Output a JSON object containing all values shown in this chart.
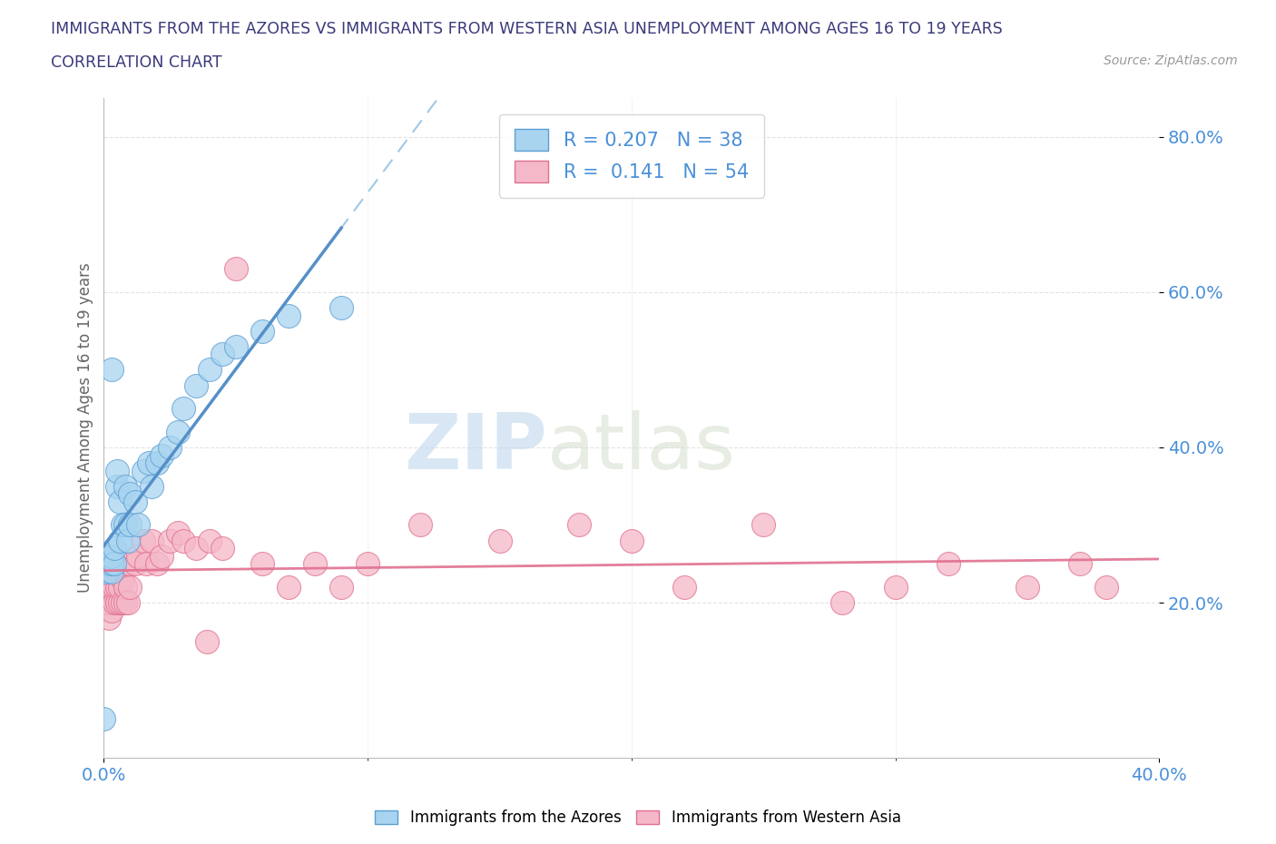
{
  "title_line1": "IMMIGRANTS FROM THE AZORES VS IMMIGRANTS FROM WESTERN ASIA UNEMPLOYMENT AMONG AGES 16 TO 19 YEARS",
  "title_line2": "CORRELATION CHART",
  "source": "Source: ZipAtlas.com",
  "ylabel": "Unemployment Among Ages 16 to 19 years",
  "xlim": [
    0.0,
    0.4
  ],
  "ylim": [
    0.0,
    0.85
  ],
  "xtick_values": [
    0.0,
    0.4
  ],
  "xtick_labels": [
    "0.0%",
    "40.0%"
  ],
  "ytick_values": [
    0.2,
    0.4,
    0.6,
    0.8
  ],
  "ytick_labels": [
    "20.0%",
    "40.0%",
    "60.0%",
    "80.0%"
  ],
  "azores_color": "#A8D4F0",
  "azores_edge_color": "#5B9FD4",
  "western_asia_color": "#F5B8C8",
  "western_asia_edge_color": "#E07090",
  "azores_R": 0.207,
  "azores_N": 38,
  "western_asia_R": 0.141,
  "western_asia_N": 54,
  "watermark_zip": "ZIP",
  "watermark_atlas": "atlas",
  "legend_label_azores": "Immigrants from the Azores",
  "legend_label_western_asia": "Immigrants from Western Asia",
  "azores_x": [
    0.0,
    0.001,
    0.001,
    0.002,
    0.002,
    0.003,
    0.003,
    0.003,
    0.004,
    0.004,
    0.005,
    0.005,
    0.006,
    0.006,
    0.007,
    0.008,
    0.008,
    0.009,
    0.01,
    0.01,
    0.012,
    0.013,
    0.015,
    0.017,
    0.018,
    0.02,
    0.022,
    0.025,
    0.028,
    0.03,
    0.035,
    0.04,
    0.045,
    0.05,
    0.06,
    0.07,
    0.09,
    0.003
  ],
  "azores_y": [
    0.05,
    0.24,
    0.25,
    0.25,
    0.26,
    0.24,
    0.25,
    0.26,
    0.25,
    0.27,
    0.35,
    0.37,
    0.33,
    0.28,
    0.3,
    0.3,
    0.35,
    0.28,
    0.3,
    0.34,
    0.33,
    0.3,
    0.37,
    0.38,
    0.35,
    0.38,
    0.39,
    0.4,
    0.42,
    0.45,
    0.48,
    0.5,
    0.52,
    0.53,
    0.55,
    0.57,
    0.58,
    0.5
  ],
  "western_asia_x": [
    0.0,
    0.0,
    0.001,
    0.001,
    0.002,
    0.002,
    0.002,
    0.003,
    0.003,
    0.004,
    0.004,
    0.005,
    0.005,
    0.006,
    0.006,
    0.007,
    0.007,
    0.008,
    0.008,
    0.009,
    0.01,
    0.01,
    0.012,
    0.013,
    0.015,
    0.016,
    0.018,
    0.02,
    0.022,
    0.025,
    0.028,
    0.03,
    0.035,
    0.04,
    0.045,
    0.05,
    0.06,
    0.07,
    0.08,
    0.09,
    0.1,
    0.12,
    0.15,
    0.18,
    0.2,
    0.22,
    0.25,
    0.28,
    0.3,
    0.32,
    0.35,
    0.37,
    0.38,
    0.039
  ],
  "western_asia_y": [
    0.22,
    0.24,
    0.2,
    0.22,
    0.18,
    0.2,
    0.22,
    0.19,
    0.22,
    0.2,
    0.22,
    0.2,
    0.22,
    0.2,
    0.22,
    0.2,
    0.23,
    0.2,
    0.22,
    0.2,
    0.22,
    0.25,
    0.25,
    0.26,
    0.28,
    0.25,
    0.28,
    0.25,
    0.26,
    0.28,
    0.29,
    0.28,
    0.27,
    0.28,
    0.27,
    0.63,
    0.25,
    0.22,
    0.25,
    0.22,
    0.25,
    0.3,
    0.28,
    0.3,
    0.28,
    0.22,
    0.3,
    0.2,
    0.22,
    0.25,
    0.22,
    0.25,
    0.22,
    0.15
  ],
  "background_color": "#FFFFFF",
  "grid_color": "#DDDDDD",
  "title_color": "#3A3A7A",
  "axis_label_color": "#666666",
  "tick_color": "#4A90D9",
  "stat_color": "#4A90D9",
  "azores_line_color": "#5590C8",
  "azores_line_dash_color": "#88BBE0",
  "western_asia_line_color": "#E07090"
}
